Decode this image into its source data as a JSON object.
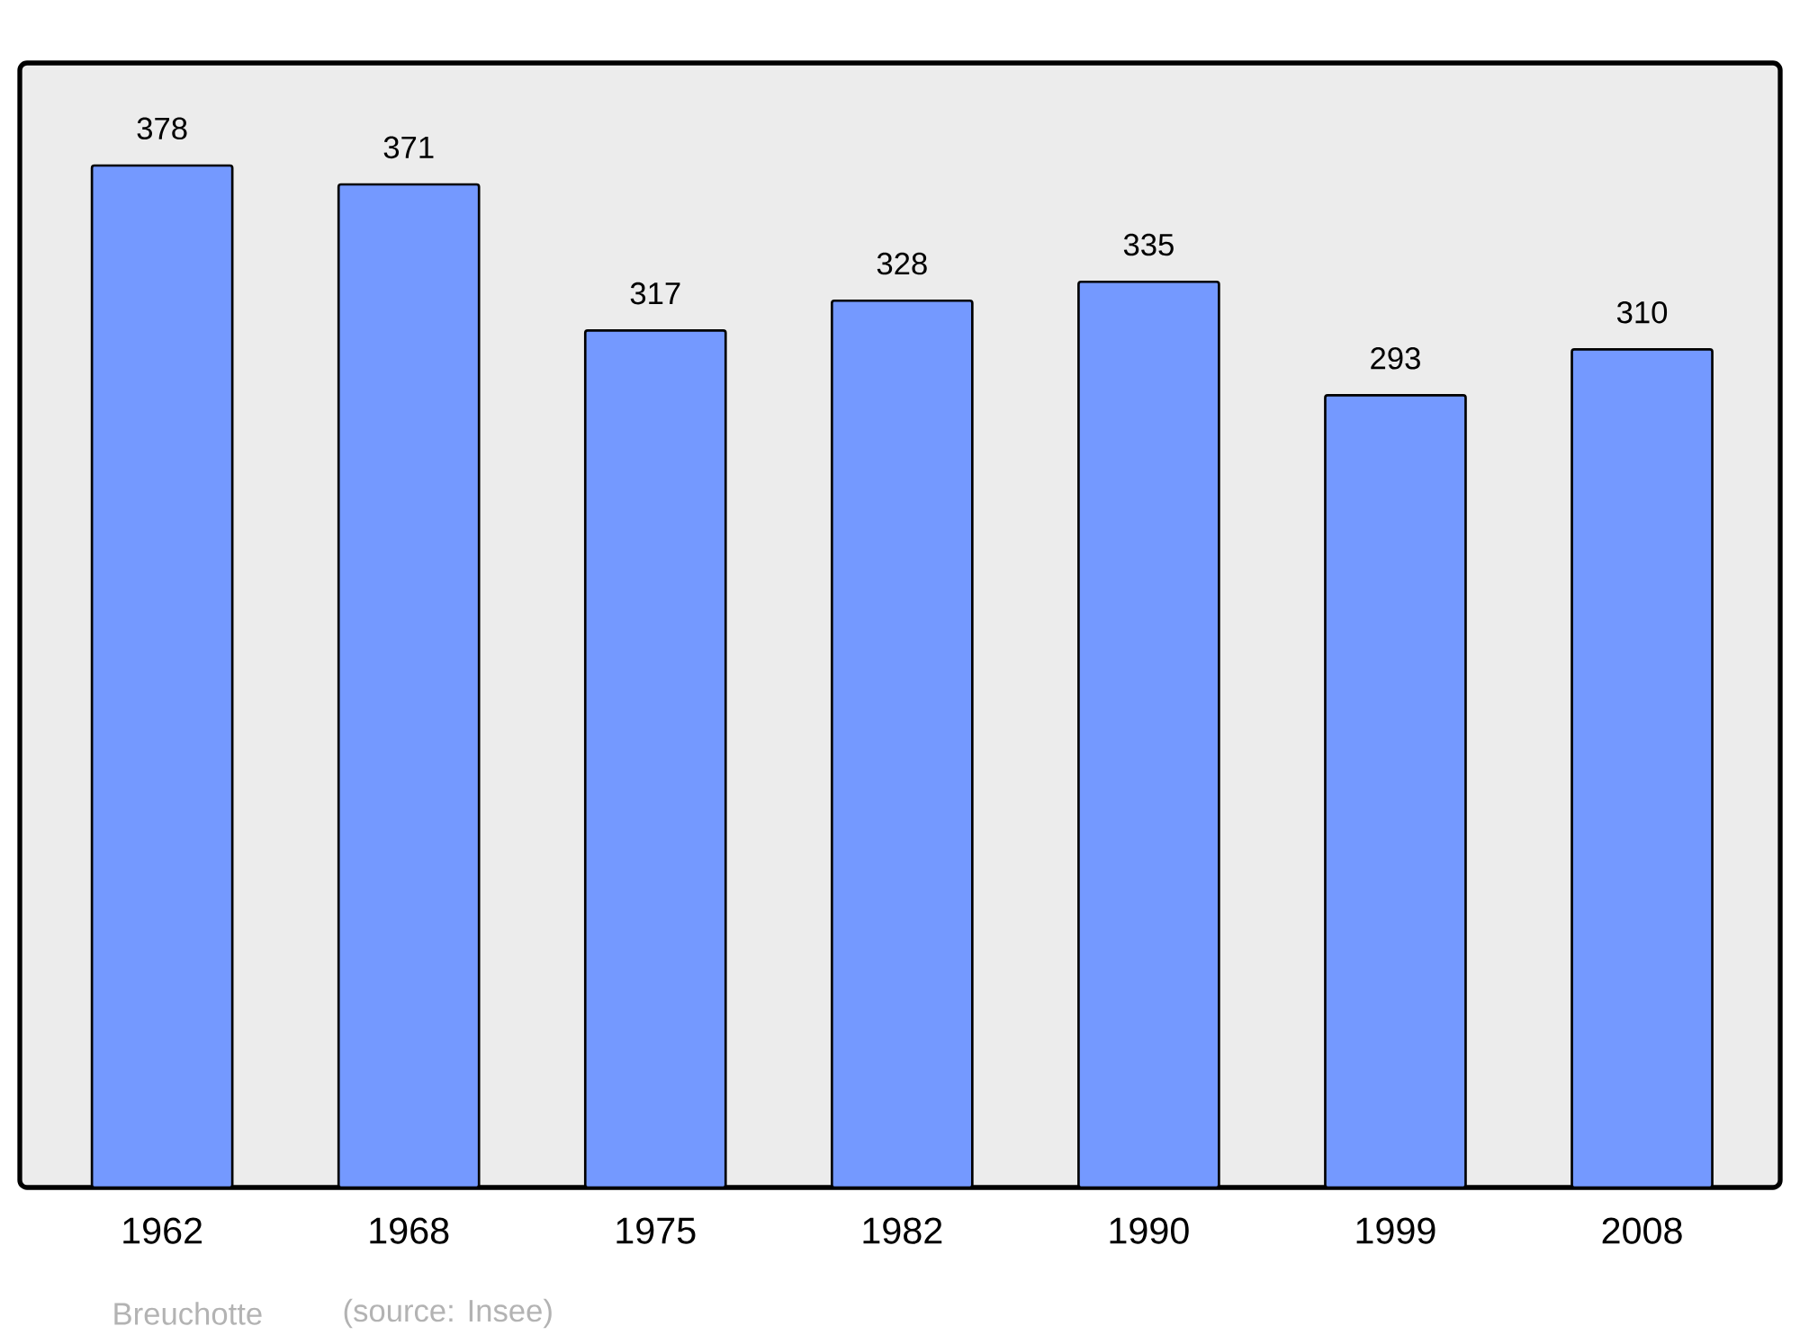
{
  "chart_data": {
    "type": "bar",
    "categories": [
      "1962",
      "1968",
      "1975",
      "1982",
      "1990",
      "1999",
      "2008"
    ],
    "values": [
      378,
      371,
      317,
      328,
      335,
      293,
      310
    ],
    "color": "#7499ff",
    "data_labels": true,
    "annotations": [
      "Breuchotte",
      "(source: Insee)"
    ]
  }
}
